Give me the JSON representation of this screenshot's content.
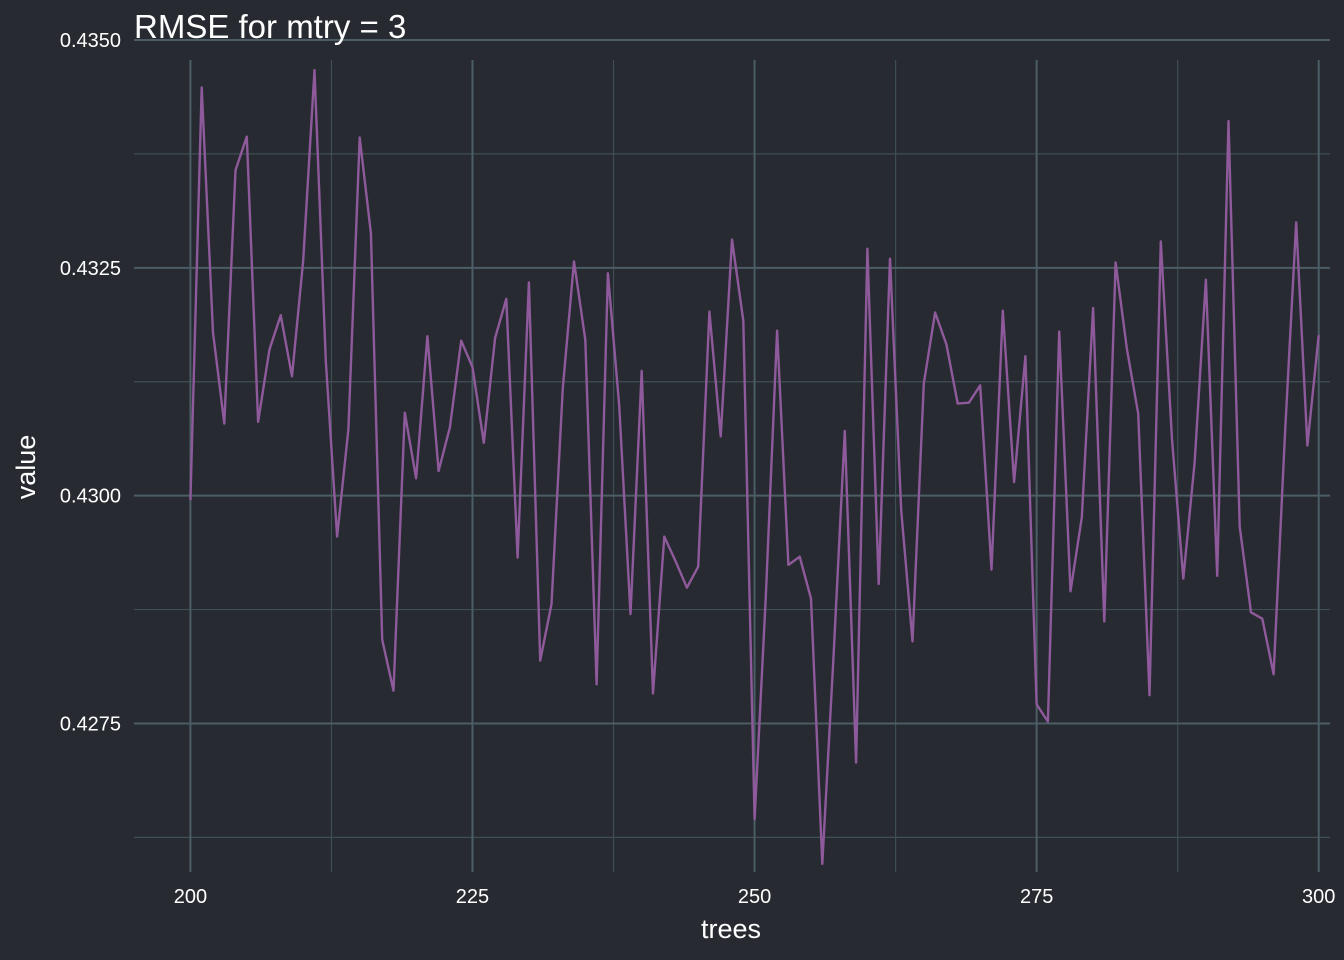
{
  "chart_data": {
    "type": "line",
    "title": "RMSE for mtry = 3",
    "xlabel": "trees",
    "ylabel": "value",
    "xlim": [
      195,
      301
    ],
    "ylim": [
      0.42587,
      0.435
    ],
    "x_ticks": [
      200,
      225,
      250,
      275,
      300
    ],
    "x_tick_labels": [
      "200",
      "225",
      "250",
      "275",
      "300"
    ],
    "y_ticks": [
      0.4275,
      0.43,
      0.4325,
      0.435
    ],
    "y_tick_labels": [
      "0.4275",
      "0.4300",
      "0.4325",
      "0.4350"
    ],
    "grid": true,
    "legend": "none",
    "line_color": "#8e5a9b",
    "series": [
      {
        "x": [
          200,
          201,
          202,
          203,
          204,
          205,
          206,
          207,
          208,
          209,
          210,
          211,
          212,
          213,
          214,
          215,
          216,
          217,
          218,
          219,
          220,
          221,
          222,
          223,
          224,
          225,
          226,
          227,
          228,
          229,
          230,
          231,
          232,
          233,
          234,
          235,
          236,
          237,
          238,
          239,
          240,
          241,
          242,
          243,
          244,
          245,
          246,
          247,
          248,
          249,
          250,
          251,
          252,
          253,
          254,
          255,
          256,
          257,
          258,
          259,
          260,
          261,
          262,
          263,
          264,
          265,
          266,
          267,
          268,
          269,
          270,
          271,
          272,
          273,
          274,
          275,
          276,
          277,
          278,
          279,
          280,
          281,
          282,
          283,
          284,
          285,
          286,
          287,
          288,
          289,
          290,
          291,
          292,
          293,
          294,
          295,
          296,
          297,
          298,
          299,
          300
        ],
        "values": [
          0.42995,
          0.43448,
          0.43179,
          0.43079,
          0.43357,
          0.43394,
          0.43081,
          0.4316,
          0.43198,
          0.43131,
          0.43258,
          0.43467,
          0.43148,
          0.42955,
          0.43073,
          0.43393,
          0.43288,
          0.42842,
          0.42786,
          0.43091,
          0.43019,
          0.43175,
          0.43027,
          0.43075,
          0.4317,
          0.43141,
          0.43058,
          0.43173,
          0.43216,
          0.42932,
          0.43234,
          0.42819,
          0.42881,
          0.43118,
          0.43257,
          0.43171,
          0.42793,
          0.43244,
          0.43099,
          0.4287,
          0.43137,
          0.42783,
          0.42955,
          0.42928,
          0.42899,
          0.42922,
          0.43202,
          0.43065,
          0.43281,
          0.43192,
          0.42645,
          0.42889,
          0.43181,
          0.42924,
          0.42933,
          0.42887,
          0.42596,
          0.42823,
          0.43071,
          0.42707,
          0.43271,
          0.42903,
          0.4326,
          0.42984,
          0.4284,
          0.43123,
          0.43201,
          0.43166,
          0.43101,
          0.43102,
          0.43121,
          0.42919,
          0.43203,
          0.43015,
          0.43153,
          0.42771,
          0.42752,
          0.4318,
          0.42895,
          0.42976,
          0.43206,
          0.42862,
          0.43256,
          0.43161,
          0.4309,
          0.42781,
          0.43279,
          0.43062,
          0.42909,
          0.43036,
          0.43237,
          0.42912,
          0.43411,
          0.42966,
          0.42872,
          0.42865,
          0.42804,
          0.43066,
          0.433,
          0.43055,
          0.43176
        ]
      }
    ]
  }
}
